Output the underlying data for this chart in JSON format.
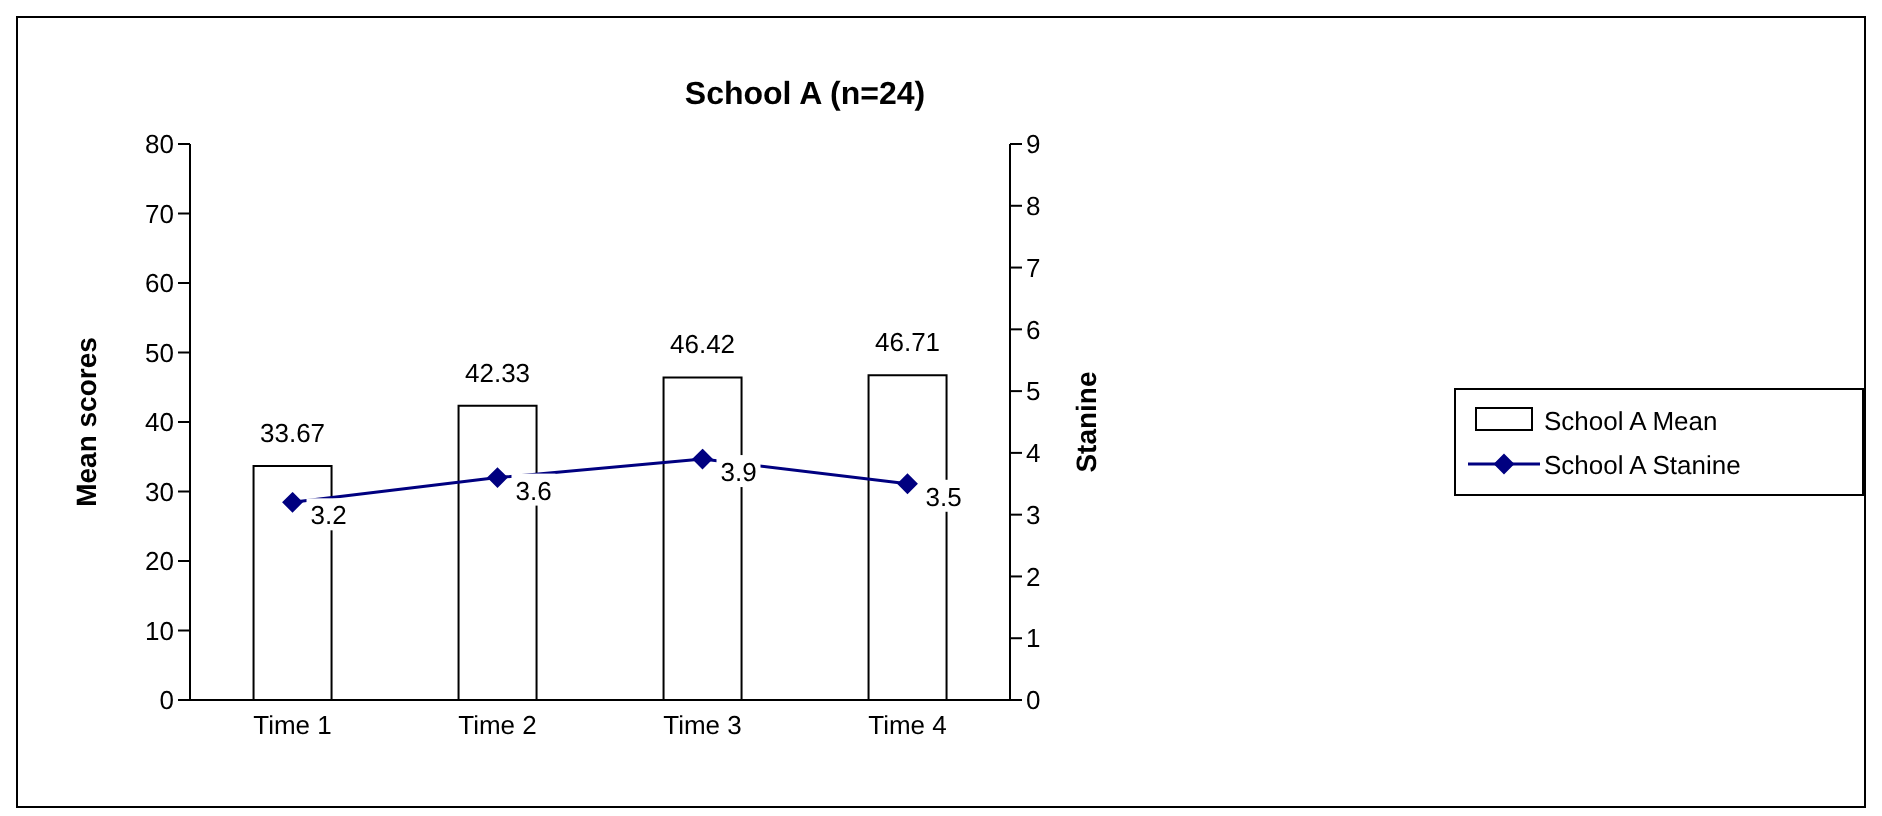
{
  "chart_data": {
    "type": "bar",
    "title": "School A (n=24)",
    "ylabel": "Mean scores",
    "y2label": "Stanine",
    "categories": [
      "Time 1",
      "Time 2",
      "Time 3",
      "Time 4"
    ],
    "series": [
      {
        "name": "School A Mean",
        "color": "#ffffff",
        "values": [
          33.67,
          42.33,
          46.42,
          46.71
        ]
      },
      {
        "name": "School A Stanine",
        "type": "line",
        "axis": "y2",
        "color": "#000080",
        "values": [
          3.2,
          3.6,
          3.9,
          3.5
        ]
      }
    ],
    "ylim": [
      0,
      80
    ],
    "yticks": [
      0,
      10,
      20,
      30,
      40,
      50,
      60,
      70,
      80
    ],
    "y2lim": [
      0,
      9
    ],
    "y2ticks": [
      0,
      1,
      2,
      3,
      4,
      5,
      6,
      7,
      8,
      9
    ],
    "data_labels": true,
    "marker": "diamond",
    "legend": "right",
    "grid": false
  }
}
